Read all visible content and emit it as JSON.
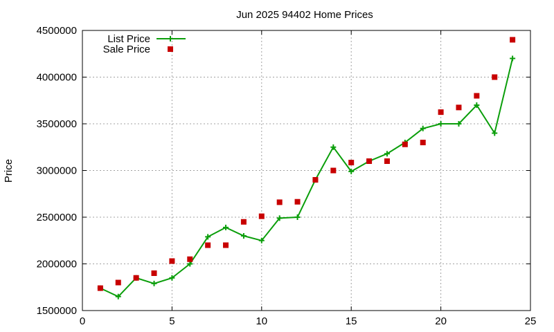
{
  "chart_data": {
    "type": "line",
    "title": "Jun 2025 94402 Home Prices",
    "xlabel": "",
    "ylabel": "Price",
    "xlim": [
      0,
      25
    ],
    "ylim": [
      1500000,
      4500000
    ],
    "xticks": [
      0,
      5,
      10,
      15,
      20,
      25
    ],
    "yticks": [
      1500000,
      2000000,
      2500000,
      3000000,
      3500000,
      4000000,
      4500000
    ],
    "grid": true,
    "legend_position": "top-left",
    "x": [
      1,
      2,
      3,
      4,
      5,
      6,
      7,
      8,
      9,
      10,
      11,
      12,
      13,
      14,
      15,
      16,
      17,
      18,
      19,
      20,
      21,
      22,
      23,
      24
    ],
    "series": [
      {
        "name": "List Price",
        "style": "line-with-plus-markers",
        "color": "#0a9e0a",
        "values": [
          1740000,
          1650000,
          1850000,
          1790000,
          1850000,
          2000000,
          2290000,
          2390000,
          2300000,
          2250000,
          2490000,
          2500000,
          2900000,
          3250000,
          2990000,
          3100000,
          3180000,
          3300000,
          3450000,
          3500000,
          3500000,
          3700000,
          3400000,
          4200000
        ]
      },
      {
        "name": "Sale Price",
        "style": "square-markers",
        "color": "#c80000",
        "values": [
          1740000,
          1800000,
          1850000,
          1900000,
          2030000,
          2050000,
          2200000,
          2200000,
          2450000,
          2510000,
          2660000,
          2665000,
          2900000,
          3000000,
          3085000,
          3100000,
          3100000,
          3280000,
          3300000,
          3625000,
          3675000,
          3800000,
          4000000,
          4400000
        ]
      }
    ]
  }
}
